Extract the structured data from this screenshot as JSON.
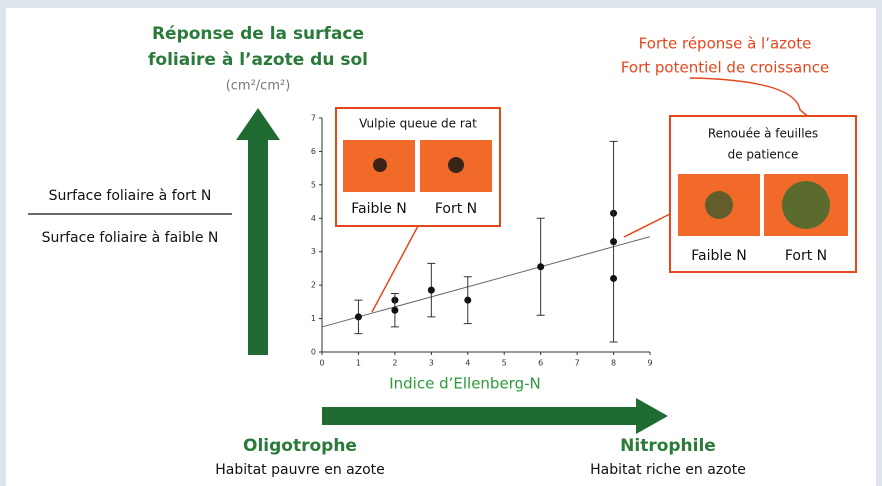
{
  "chart_data": {
    "type": "scatter",
    "title": [
      "Réponse de la surface",
      "foliaire à l’azote du sol"
    ],
    "y_unit": "(cm²/cm²)",
    "ratio": {
      "numerator": "Surface foliaire à fort N",
      "denominator": "Surface foliaire à faible N"
    },
    "xlabel": "Indice d’Ellenberg-N",
    "xlim": [
      0,
      9
    ],
    "xticks": [
      0,
      1,
      2,
      3,
      4,
      5,
      6,
      7,
      8,
      9
    ],
    "ylim": [
      0,
      7
    ],
    "yticks": [
      0,
      1,
      2,
      3,
      4,
      5,
      6,
      7
    ],
    "series": [
      {
        "color": "#111111",
        "x": [
          1,
          2,
          2,
          3,
          4,
          6,
          8,
          8,
          8
        ],
        "values": [
          1.05,
          1.55,
          1.25,
          1.85,
          1.55,
          2.55,
          4.15,
          3.3,
          2.2
        ],
        "errors": [
          0.5,
          null,
          0.5,
          0.8,
          0.7,
          1.45,
          null,
          3.0,
          null
        ]
      }
    ],
    "trendline": {
      "color": "#666666",
      "x": [
        0,
        9
      ],
      "values": [
        0.75,
        3.45
      ]
    },
    "annotations": {
      "strong": [
        "Forte réponse à l’azote",
        "Fort potentiel de croissance"
      ],
      "species1": "Vulpie queue de rat",
      "species2": [
        "Renouée à feuilles",
        "de patience"
      ],
      "low_n": "Faible N",
      "high_n": "Fort N",
      "left_title": "Oligotrophe",
      "left_sub": "Habitat pauvre en azote",
      "right_title": "Nitrophile",
      "right_sub": "Habitat riche en azote"
    }
  }
}
